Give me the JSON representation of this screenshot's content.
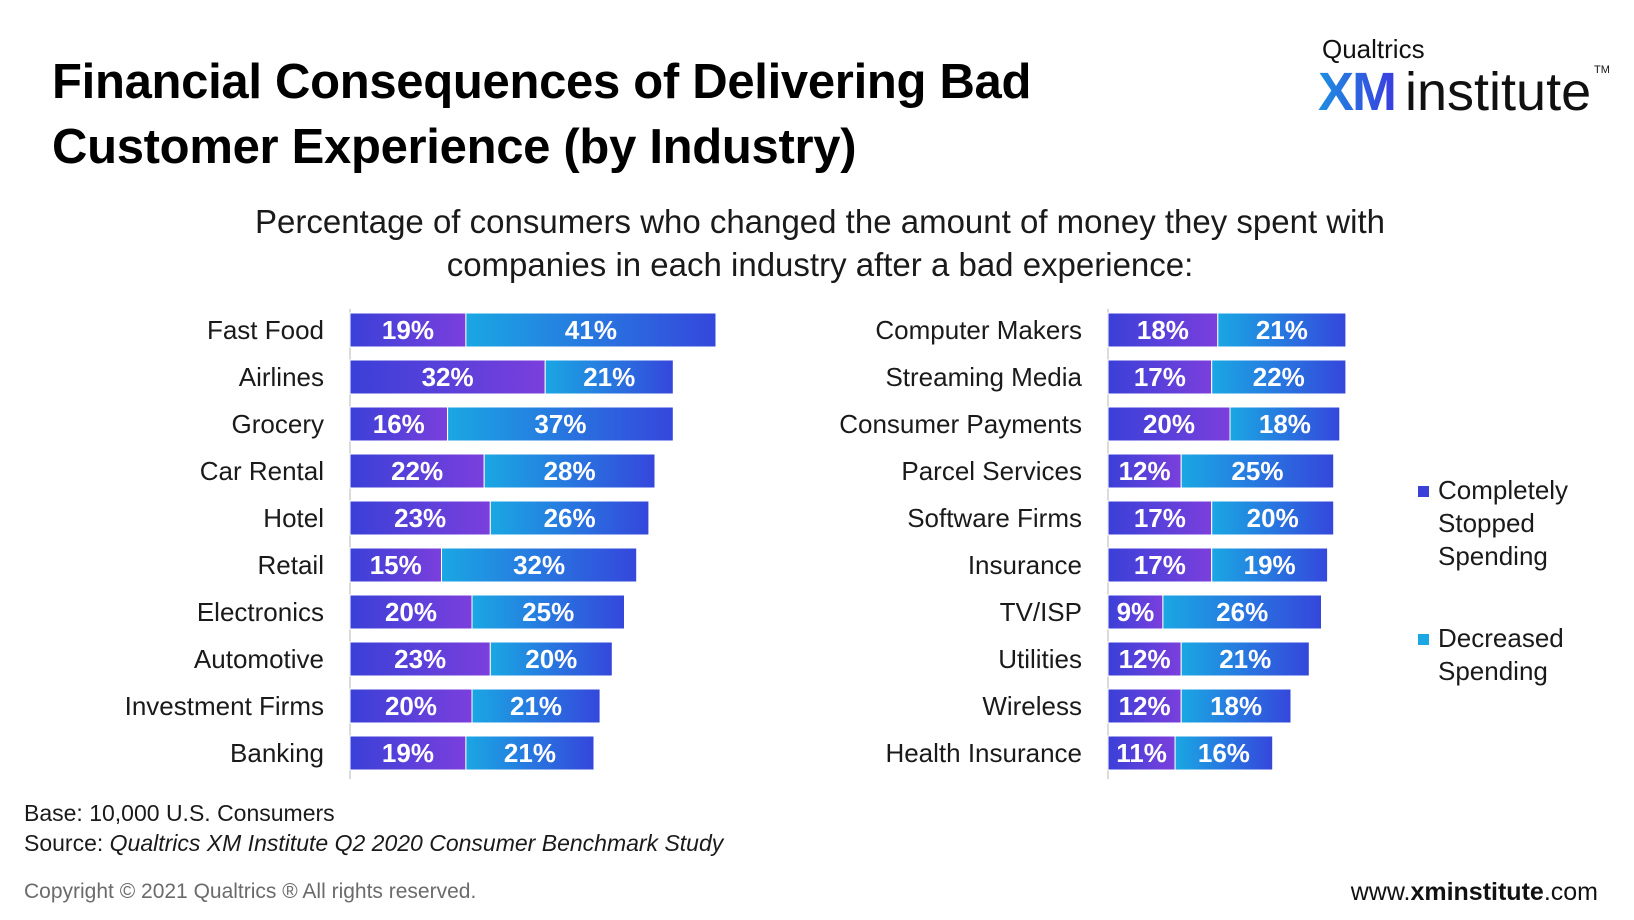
{
  "title": "Financial Consequences of Delivering Bad Customer Experience (by Industry)",
  "logo": {
    "brand": "Qualtrics",
    "xm": "XM",
    "institute": "institute",
    "tm": "TM"
  },
  "subtitle": "Percentage of consumers who changed the amount of money they spent with companies in each industry after a bad experience:",
  "footnotes": {
    "base": "Base: 10,000 U.S. Consumers",
    "source_label": "Source: ",
    "source_name": "Qualtrics XM Institute Q2 2020 Consumer Benchmark Study"
  },
  "copyright": "Copyright © 2021 Qualtrics ® All rights reserved.",
  "website": {
    "prefix": "www.",
    "bold": "xminstitute",
    "suffix": ".com"
  },
  "colors": {
    "stopped_start": "#3a40d8",
    "stopped_end": "#7b3fdc",
    "decreased_start": "#1aa7e3",
    "decreased_end": "#3547dc",
    "label": "#ffffff",
    "axis": "#cfcfcf"
  },
  "chart_data": [
    {
      "type": "bar",
      "orientation": "horizontal",
      "stacked": true,
      "categories": [
        "Fast Food",
        "Airlines",
        "Grocery",
        "Car Rental",
        "Hotel",
        "Retail",
        "Electronics",
        "Automotive",
        "Investment Firms",
        "Banking"
      ],
      "series": [
        {
          "name": "Completely Stopped Spending",
          "values": [
            19,
            32,
            16,
            22,
            23,
            15,
            20,
            23,
            20,
            19
          ]
        },
        {
          "name": "Decreased Spending",
          "values": [
            41,
            21,
            37,
            28,
            26,
            32,
            25,
            20,
            21,
            21
          ]
        }
      ],
      "xlim": [
        0,
        100
      ],
      "unit": "%"
    },
    {
      "type": "bar",
      "orientation": "horizontal",
      "stacked": true,
      "categories": [
        "Computer Makers",
        "Streaming Media",
        "Consumer Payments",
        "Parcel Services",
        "Software Firms",
        "Insurance",
        "TV/ISP",
        "Utilities",
        "Wireless",
        "Health Insurance"
      ],
      "series": [
        {
          "name": "Completely Stopped Spending",
          "values": [
            18,
            17,
            20,
            12,
            17,
            17,
            9,
            12,
            12,
            11
          ]
        },
        {
          "name": "Decreased Spending",
          "values": [
            21,
            22,
            18,
            25,
            20,
            19,
            26,
            21,
            18,
            16
          ]
        }
      ],
      "xlim": [
        0,
        100
      ],
      "unit": "%"
    }
  ],
  "legend": {
    "items": [
      {
        "label": "Completely Stopped Spending",
        "lines": [
          "Completely",
          "Stopped",
          "Spending"
        ],
        "color": "#3a40d8"
      },
      {
        "label": "Decreased Spending",
        "lines": [
          "Decreased",
          "Spending"
        ],
        "color": "#1aa7e3"
      }
    ]
  }
}
